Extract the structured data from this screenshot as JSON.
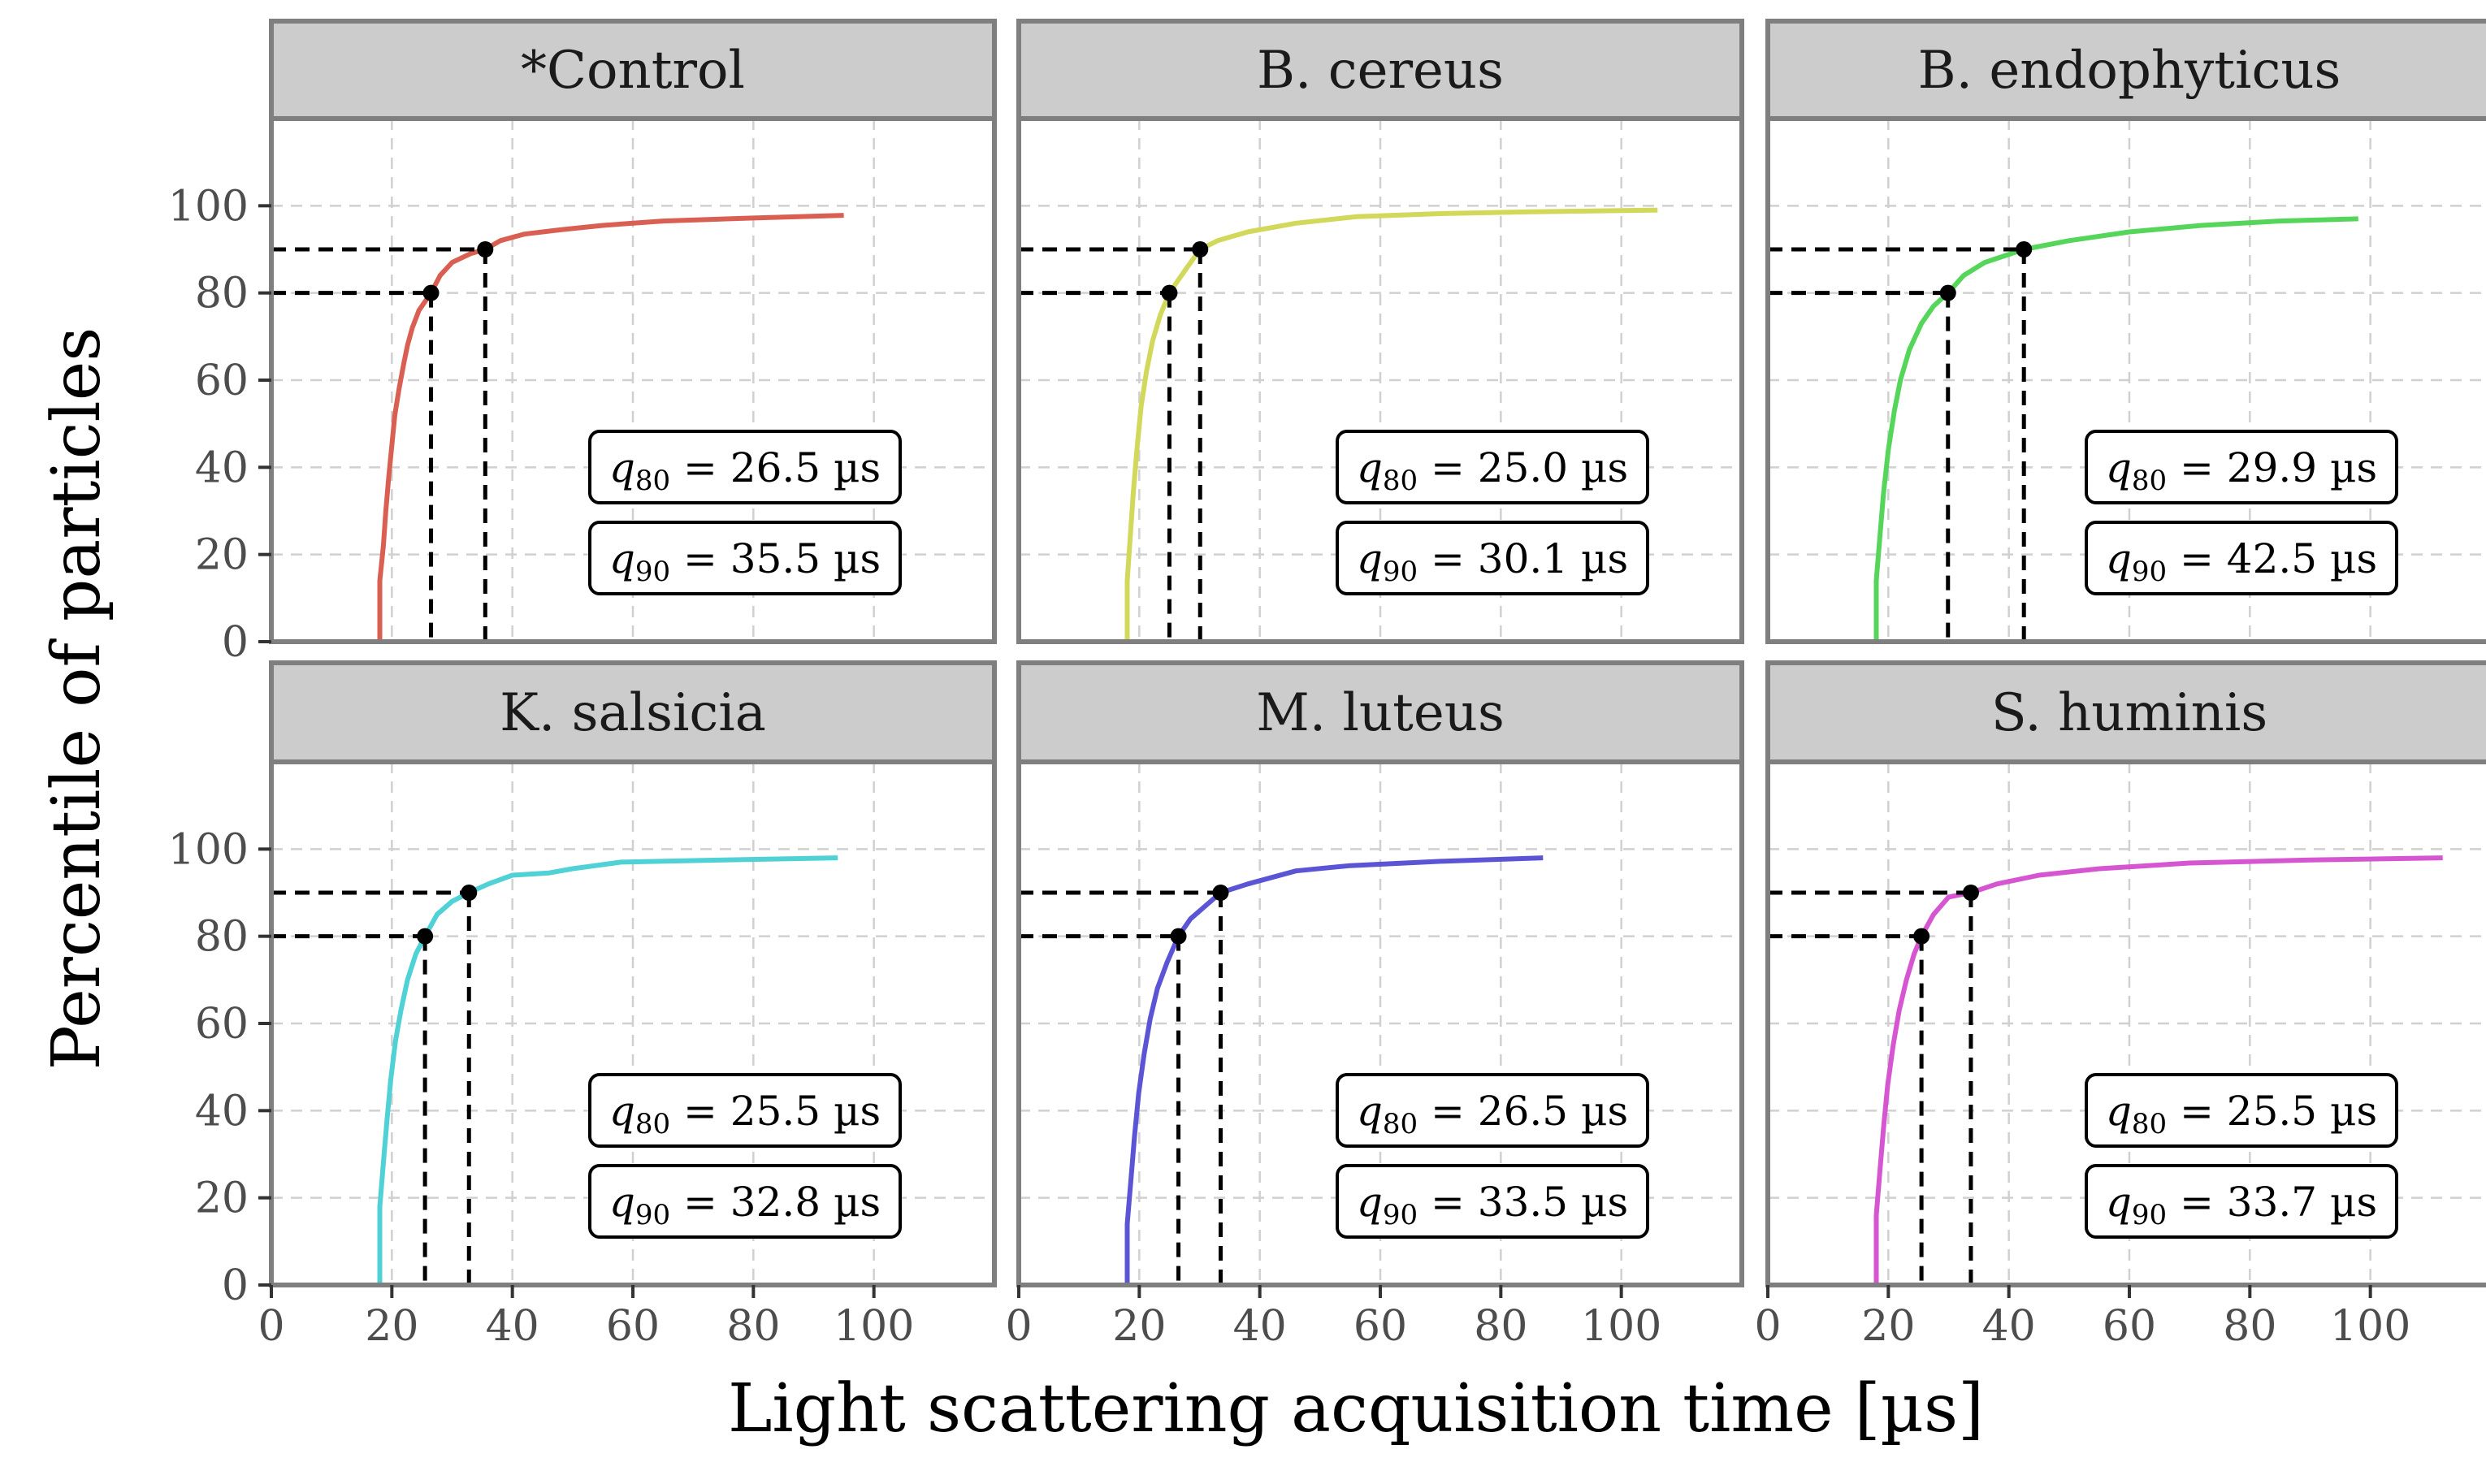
{
  "figure": {
    "xlabel": "Light scattering acquisition time [µs]",
    "ylabel": "Percentile of particles"
  },
  "chart_data": {
    "type": "line",
    "xlabel": "Light scattering acquisition time [µs]",
    "ylabel": "Percentile of particles",
    "xlim": [
      0,
      120
    ],
    "ylim": [
      0,
      120
    ],
    "x_ticks": [
      "0",
      "20",
      "40",
      "60",
      "80",
      "100"
    ],
    "y_ticks": [
      "0",
      "20",
      "40",
      "60",
      "80",
      "100"
    ],
    "grid": true,
    "facets": [
      {
        "name": "*Control",
        "color": "#D95F52",
        "points": [
          [
            18,
            0
          ],
          [
            18,
            14
          ],
          [
            18.6,
            22
          ],
          [
            19,
            30
          ],
          [
            19.5,
            38
          ],
          [
            20,
            45
          ],
          [
            20.5,
            52
          ],
          [
            21.2,
            58
          ],
          [
            22,
            64
          ],
          [
            22.6,
            68
          ],
          [
            23.4,
            72
          ],
          [
            24.5,
            76
          ],
          [
            26.5,
            80
          ],
          [
            28,
            84
          ],
          [
            30,
            87
          ],
          [
            33,
            89
          ],
          [
            35.5,
            90
          ],
          [
            38,
            92
          ],
          [
            42,
            93.5
          ],
          [
            48,
            94.5
          ],
          [
            55,
            95.5
          ],
          [
            65,
            96.5
          ],
          [
            80,
            97.2
          ],
          [
            95,
            97.8
          ]
        ],
        "q80": 26.5,
        "q90": 35.5,
        "q80_label": "q80 = 26.5 µs",
        "q90_label": "q90 = 35.5 µs"
      },
      {
        "name": "B. cereus",
        "color": "#D1D85A",
        "points": [
          [
            18,
            0
          ],
          [
            18,
            14
          ],
          [
            18.5,
            24
          ],
          [
            19,
            34
          ],
          [
            19.6,
            44
          ],
          [
            20.3,
            54
          ],
          [
            21.2,
            62
          ],
          [
            22.2,
            69
          ],
          [
            23.5,
            75
          ],
          [
            25,
            80
          ],
          [
            26.5,
            83
          ],
          [
            28,
            86
          ],
          [
            30.1,
            90
          ],
          [
            33,
            92
          ],
          [
            38,
            94
          ],
          [
            46,
            96
          ],
          [
            56,
            97.5
          ],
          [
            70,
            98.2
          ],
          [
            85,
            98.6
          ],
          [
            106,
            99
          ]
        ],
        "q80": 25.0,
        "q90": 30.1,
        "q80_label": "q80 = 25.0 µs",
        "q90_label": "q90 = 30.1 µs"
      },
      {
        "name": "B. endophyticus",
        "color": "#55D65A",
        "points": [
          [
            18,
            0
          ],
          [
            18,
            14
          ],
          [
            18.6,
            24
          ],
          [
            19.2,
            34
          ],
          [
            20,
            44
          ],
          [
            21,
            53
          ],
          [
            22,
            60
          ],
          [
            23.5,
            67
          ],
          [
            25.5,
            73
          ],
          [
            27.5,
            77
          ],
          [
            29.9,
            80
          ],
          [
            32.5,
            84
          ],
          [
            36,
            87
          ],
          [
            42.5,
            90
          ],
          [
            50,
            92
          ],
          [
            60,
            94
          ],
          [
            72,
            95.5
          ],
          [
            85,
            96.5
          ],
          [
            98,
            97
          ]
        ],
        "q80": 29.9,
        "q90": 42.5,
        "q80_label": "q80 = 29.9 µs",
        "q90_label": "q90 = 42.5 µs"
      },
      {
        "name": "K. salsicia",
        "color": "#4FD1D6",
        "points": [
          [
            18,
            0
          ],
          [
            18,
            18
          ],
          [
            18.6,
            28
          ],
          [
            19.2,
            38
          ],
          [
            19.8,
            47
          ],
          [
            20.6,
            56
          ],
          [
            21.5,
            63
          ],
          [
            22.6,
            70
          ],
          [
            24,
            76
          ],
          [
            25.5,
            80
          ],
          [
            27.5,
            85
          ],
          [
            30,
            88
          ],
          [
            32.8,
            90
          ],
          [
            36,
            92
          ],
          [
            40,
            94
          ],
          [
            46,
            94.5
          ],
          [
            50,
            95.5
          ],
          [
            58,
            97
          ],
          [
            75,
            97.5
          ],
          [
            94,
            98
          ]
        ],
        "q80": 25.5,
        "q90": 32.8,
        "q80_label": "q80 = 25.5 µs",
        "q90_label": "q90 = 32.8 µs"
      },
      {
        "name": "M. luteus",
        "color": "#5B55D6",
        "points": [
          [
            18,
            0
          ],
          [
            18,
            14
          ],
          [
            18.6,
            24
          ],
          [
            19.2,
            34
          ],
          [
            19.9,
            44
          ],
          [
            20.8,
            53
          ],
          [
            21.8,
            61
          ],
          [
            23,
            68
          ],
          [
            24.6,
            74
          ],
          [
            26.5,
            80
          ],
          [
            28.5,
            84
          ],
          [
            31,
            87
          ],
          [
            33.5,
            90
          ],
          [
            38,
            92
          ],
          [
            46,
            95
          ],
          [
            55,
            96.2
          ],
          [
            70,
            97.2
          ],
          [
            87,
            98
          ]
        ],
        "q80": 26.5,
        "q90": 33.5,
        "q80_label": "q80 = 26.5 µs",
        "q90_label": "q90 = 33.5 µs"
      },
      {
        "name": "S. huminis",
        "color": "#D655D1",
        "points": [
          [
            18,
            0
          ],
          [
            18,
            16
          ],
          [
            18.6,
            26
          ],
          [
            19.2,
            36
          ],
          [
            19.9,
            46
          ],
          [
            20.8,
            55
          ],
          [
            21.8,
            63
          ],
          [
            23,
            70
          ],
          [
            24.3,
            76
          ],
          [
            25.5,
            80
          ],
          [
            27.5,
            85
          ],
          [
            30,
            89
          ],
          [
            33.7,
            90
          ],
          [
            38,
            92
          ],
          [
            45,
            94
          ],
          [
            55,
            95.5
          ],
          [
            70,
            96.8
          ],
          [
            90,
            97.5
          ],
          [
            112,
            98
          ]
        ],
        "q80": 25.5,
        "q90": 33.7,
        "q80_label": "q80 = 25.5 µs",
        "q90_label": "q90 = 33.7 µs"
      }
    ]
  }
}
